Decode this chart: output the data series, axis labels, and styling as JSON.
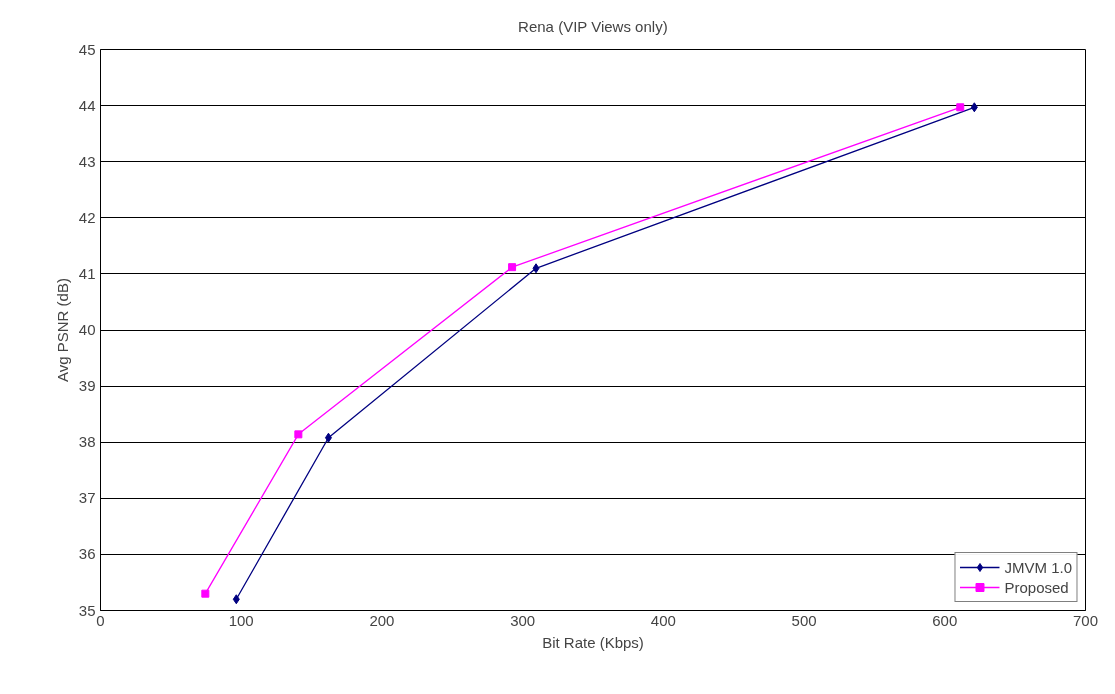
{
  "chart_data": {
    "type": "line",
    "title": "Rena (VIP Views only)",
    "xlabel": "Bit Rate (Kbps)",
    "ylabel": "Avg PSNR (dB)",
    "xlim": [
      0,
      700
    ],
    "xticks": [
      0,
      100,
      200,
      300,
      400,
      500,
      600,
      700
    ],
    "ylim": [
      35,
      45
    ],
    "yticks": [
      35,
      36,
      37,
      38,
      39,
      40,
      41,
      42,
      43,
      44,
      45
    ],
    "grid": "y",
    "legend": "bottom right",
    "series": [
      {
        "name": "JMVM 1.0",
        "color": "#000080",
        "marker": "diamond",
        "x": [
          96.5,
          162,
          309.5,
          621
        ],
        "values": [
          35.2,
          38.08,
          41.1,
          43.97
        ]
      },
      {
        "name": "Proposed",
        "color": "#ff00ff",
        "marker": "square",
        "x": [
          74.5,
          140.6,
          292.5,
          611
        ],
        "values": [
          35.3,
          38.14,
          41.12,
          43.97
        ]
      }
    ]
  }
}
